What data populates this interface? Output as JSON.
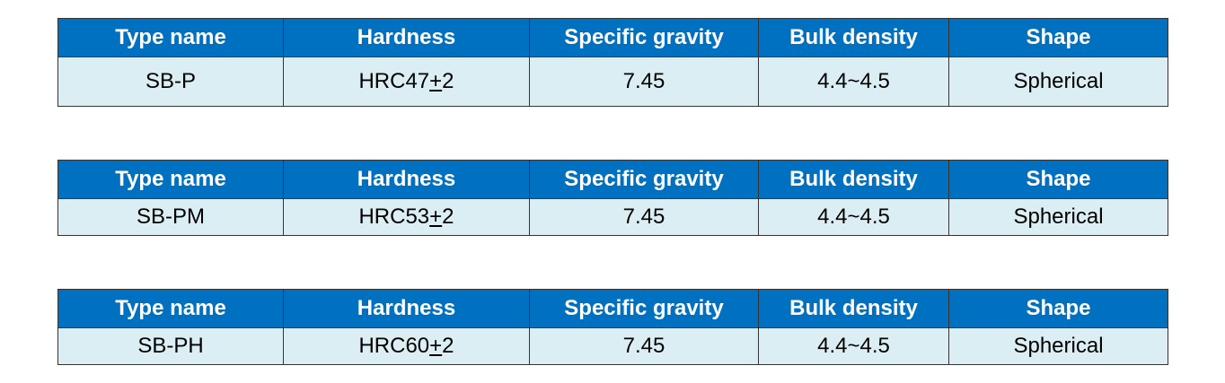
{
  "tables": [
    {
      "header": [
        "Type name",
        "Hardness",
        "Specific gravity",
        "Bulk density",
        "Shape"
      ],
      "rows": [
        [
          "SB-P",
          [
            "HRC47",
            "+",
            "2"
          ],
          "7.45",
          "4.4~4.5",
          "Spherical"
        ]
      ]
    },
    {
      "header": [
        "Type name",
        "Hardness",
        "Specific gravity",
        "Bulk density",
        "Shape"
      ],
      "rows": [
        [
          "SB-PM",
          [
            "HRC53",
            "+",
            "2"
          ],
          "7.45",
          "4.4~4.5",
          "Spherical"
        ]
      ]
    },
    {
      "header": [
        "Type name",
        "Hardness",
        "Specific gravity",
        "Bulk density",
        "Shape"
      ],
      "rows": [
        [
          "SB-PH",
          [
            "HRC60",
            "+",
            "2"
          ],
          "7.45",
          "4.4~4.5",
          "Spherical"
        ]
      ]
    }
  ]
}
